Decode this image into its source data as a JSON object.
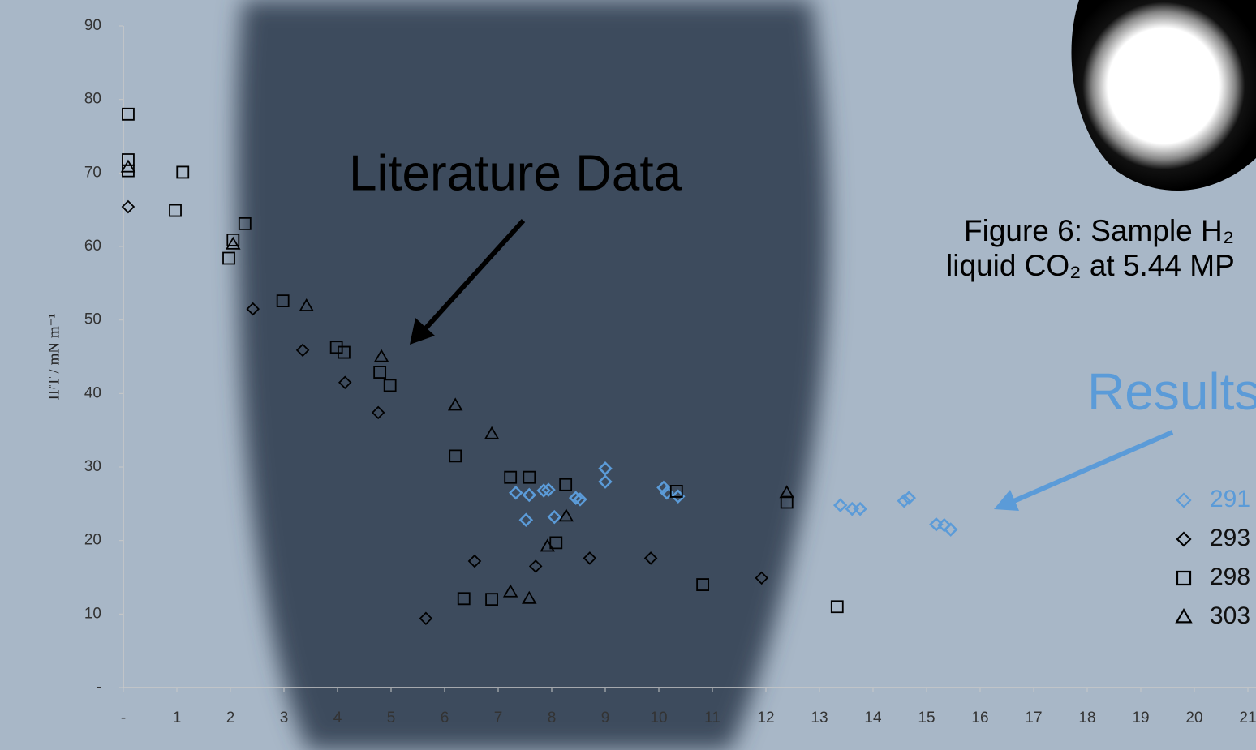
{
  "chart_data": {
    "type": "scatter",
    "y_label": "IFT / mN m⁻¹",
    "annotations": [
      "Literature Data",
      "Results",
      "Figure 6: Sample H₂",
      "liquid CO₂ at 5.44 MP"
    ],
    "xlim": [
      0,
      21
    ],
    "ylim": [
      0,
      90
    ],
    "xticks": [
      {
        "value": 0,
        "label": "-"
      },
      1,
      2,
      3,
      4,
      5,
      6,
      7,
      8,
      9,
      10,
      11,
      12,
      13,
      14,
      15,
      16,
      17,
      18,
      19,
      20,
      21
    ],
    "yticks": [
      {
        "value": 0,
        "label": "-"
      },
      10,
      20,
      30,
      40,
      50,
      60,
      70,
      80,
      90
    ],
    "series": [
      {
        "name": "291",
        "color": "#5b9bd8",
        "marker": "diamond",
        "x": [
          7.33,
          7.58,
          7.52,
          7.85,
          7.94,
          8.05,
          8.45,
          8.53,
          9.0,
          9.0,
          10.09,
          10.15,
          10.36,
          13.39,
          13.61,
          13.76,
          14.58,
          14.67,
          15.18,
          15.33,
          15.45
        ],
        "values": [
          26.5,
          26.2,
          22.8,
          26.8,
          26.9,
          23.2,
          25.8,
          25.6,
          29.8,
          28.0,
          27.2,
          26.5,
          26.0,
          24.8,
          24.3,
          24.3,
          25.4,
          25.8,
          22.2,
          22.1,
          21.5
        ]
      },
      {
        "name": "293",
        "color": "#000000",
        "marker": "diamond",
        "x": [
          0.09,
          2.42,
          3.35,
          4.14,
          4.76,
          5.65,
          6.56,
          7.7,
          8.71,
          9.85,
          11.92
        ],
        "values": [
          65.4,
          51.5,
          45.9,
          41.5,
          37.4,
          9.4,
          17.2,
          16.5,
          17.6,
          17.6,
          14.9
        ]
      },
      {
        "name": "298",
        "color": "#000000",
        "marker": "square",
        "x": [
          0.09,
          0.09,
          0.09,
          1.11,
          0.97,
          2.05,
          1.97,
          2.27,
          2.98,
          3.98,
          4.12,
          4.79,
          4.98,
          6.2,
          6.36,
          6.88,
          7.23,
          7.58,
          8.26,
          8.08,
          10.33,
          10.82,
          12.39,
          13.33
        ],
        "values": [
          78.0,
          71.8,
          70.3,
          70.1,
          64.9,
          60.9,
          58.4,
          63.1,
          52.6,
          46.3,
          45.6,
          42.9,
          41.1,
          31.5,
          12.1,
          12.0,
          28.6,
          28.6,
          27.6,
          19.7,
          26.7,
          14.0,
          25.2,
          11.0
        ]
      },
      {
        "name": "303",
        "color": "#000000",
        "marker": "triangle",
        "x": [
          0.09,
          2.05,
          3.42,
          4.82,
          6.2,
          6.88,
          7.23,
          7.58,
          7.92,
          8.27,
          12.39
        ],
        "values": [
          70.8,
          60.3,
          51.9,
          45.0,
          38.4,
          34.5,
          13.0,
          12.1,
          19.2,
          23.3,
          26.5
        ]
      }
    ]
  }
}
